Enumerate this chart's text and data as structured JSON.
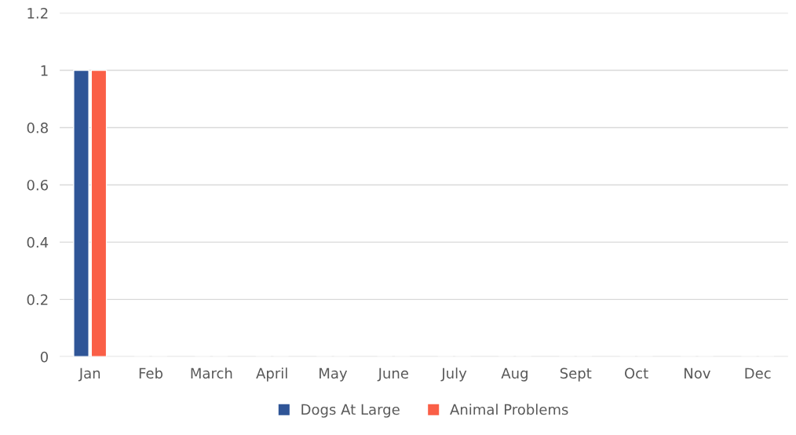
{
  "chart_data": {
    "type": "bar",
    "categories": [
      "Jan",
      "Feb",
      "March",
      "April",
      "May",
      "June",
      "July",
      "Aug",
      "Sept",
      "Oct",
      "Nov",
      "Dec"
    ],
    "series": [
      {
        "name": "Dogs At Large",
        "color": "#2f5597",
        "values": [
          1,
          0,
          0,
          0,
          0,
          0,
          0,
          0,
          0,
          0,
          0,
          0
        ]
      },
      {
        "name": "Animal Problems",
        "color": "#fa5f47",
        "values": [
          1,
          0,
          0,
          0,
          0,
          0,
          0,
          0,
          0,
          0,
          0,
          0
        ]
      }
    ],
    "ylim": [
      0,
      1.2
    ],
    "yticks": [
      0,
      0.2,
      0.4,
      0.6,
      0.8,
      1,
      1.2
    ],
    "grid": "y",
    "legend": "bottom"
  }
}
